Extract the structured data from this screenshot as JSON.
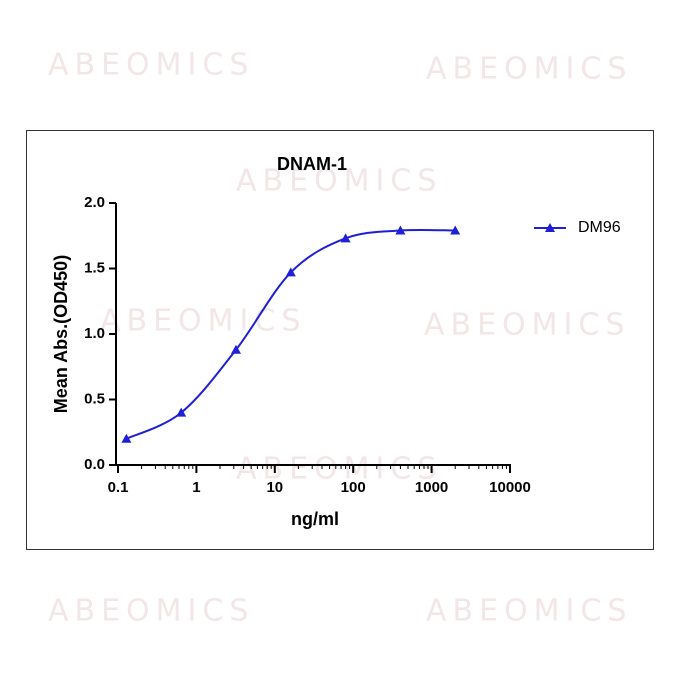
{
  "watermark": "ABEOMICS",
  "chart_data": {
    "type": "line",
    "title": "DNAM-1",
    "x_label": "ng/ml",
    "y_label": "Mean Abs.(OD450)",
    "x": [
      0.128,
      0.64,
      3.2,
      16,
      80,
      400,
      2000
    ],
    "series": [
      {
        "name": "DM96",
        "color": "#1f1fd6",
        "values": [
          0.2,
          0.4,
          0.88,
          1.47,
          1.73,
          1.79,
          1.79
        ]
      }
    ],
    "xlim": [
      0.1,
      10000
    ],
    "xticks": [
      0.1,
      1,
      10,
      100,
      1000,
      10000
    ],
    "x_scale": "log",
    "ylim": [
      0,
      2
    ],
    "yticks": [
      {
        "value": 0,
        "label": "0.0"
      },
      0.5,
      {
        "value": 1,
        "label": "1.0"
      },
      1.5,
      {
        "value": 2,
        "label": "2.0"
      }
    ],
    "legend": "right"
  }
}
